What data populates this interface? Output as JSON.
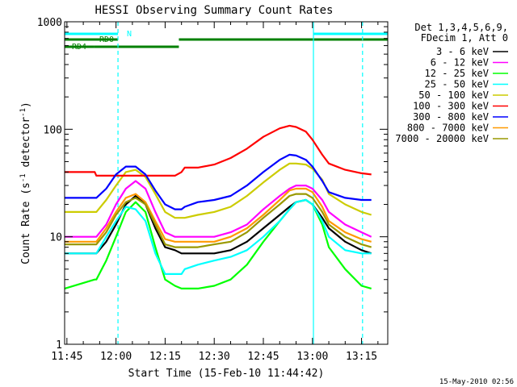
{
  "chart_data": {
    "type": "line",
    "title": "HESSI Observing Summary Count Rates",
    "xlabel": "Start Time (15-Feb-10 11:44:42)",
    "ylabel": "Count Rate (s⁻¹ detector⁻¹)",
    "ylabel_parts": [
      "Count Rate (s",
      "-1",
      " detector",
      "-1",
      ")"
    ],
    "xlim_min": [
      -0.7,
      98
    ],
    "xticks": [
      {
        "v": 0,
        "label": "11:45"
      },
      {
        "v": 15,
        "label": "12:00"
      },
      {
        "v": 30,
        "label": "12:15"
      },
      {
        "v": 45,
        "label": "12:30"
      },
      {
        "v": 60,
        "label": "12:45"
      },
      {
        "v": 75,
        "label": "13:00"
      },
      {
        "v": 90,
        "label": "13:15"
      }
    ],
    "ylim": [
      1,
      1000
    ],
    "yscale": "log",
    "yticks": [
      {
        "v": 1,
        "label": "1"
      },
      {
        "v": 10,
        "label": "10"
      },
      {
        "v": 100,
        "label": "100"
      },
      {
        "v": 1000,
        "label": "1000"
      }
    ],
    "legend": {
      "position": "right",
      "header": [
        "Det 1,3,4,5,6,9,",
        "FDecim 1, Att 0"
      ]
    },
    "x_minutes_after_11_45": [
      -0.7,
      8.5,
      9,
      12,
      15,
      18,
      21,
      24,
      27,
      30,
      33,
      35,
      36,
      40,
      45,
      50,
      55,
      60,
      65,
      68,
      70,
      73,
      75,
      78,
      80,
      85,
      90,
      93
    ],
    "series": [
      {
        "name": "3 - 6 keV",
        "color": "#000000",
        "values": [
          7,
          7,
          7,
          9,
          13,
          20,
          24,
          20,
          12,
          8,
          7.5,
          7,
          7,
          7,
          7,
          7.5,
          9,
          12,
          16,
          19,
          21,
          22,
          20,
          15,
          12,
          9,
          7.5,
          7
        ]
      },
      {
        "name": "6 - 12 keV",
        "color": "#ff00ff",
        "values": [
          10,
          10,
          10,
          13,
          20,
          28,
          33,
          28,
          17,
          11,
          10,
          10,
          10,
          10,
          10,
          11,
          13,
          18,
          24,
          28,
          30,
          30,
          28,
          22,
          17,
          13,
          11,
          10
        ]
      },
      {
        "name": "12 - 25 keV",
        "color": "#00ff00",
        "values": [
          3.3,
          4,
          4,
          6,
          10,
          17,
          21,
          17,
          8,
          4,
          3.5,
          3.3,
          3.3,
          3.3,
          3.5,
          4,
          5.5,
          9,
          14,
          18,
          21,
          22,
          20,
          13,
          8,
          5,
          3.5,
          3.3
        ]
      },
      {
        "name": "25 - 50 keV",
        "color": "#00ffff",
        "values": [
          7,
          7,
          7,
          10,
          14,
          19,
          18,
          14,
          7,
          4.5,
          4.5,
          4.5,
          5,
          5.5,
          6,
          6.5,
          7.5,
          10,
          14,
          18,
          21,
          22,
          20,
          14,
          10,
          7.5,
          7,
          7
        ]
      },
      {
        "name": "50 - 100 keV",
        "color": "#cccc00",
        "values": [
          17,
          17,
          17,
          22,
          30,
          40,
          42,
          36,
          25,
          17,
          15,
          15,
          15,
          16,
          17,
          19,
          24,
          32,
          42,
          48,
          48,
          47,
          43,
          34,
          25,
          20,
          17,
          16
        ]
      },
      {
        "name": "100 - 300 keV",
        "color": "#ff0000",
        "values": [
          40,
          40,
          37,
          37,
          37,
          37,
          37,
          37,
          37,
          37,
          37,
          40,
          44,
          44,
          47,
          54,
          66,
          85,
          102,
          108,
          105,
          95,
          80,
          58,
          48,
          42,
          39,
          38
        ]
      },
      {
        "name": "300 - 800 keV",
        "color": "#0000ff",
        "values": [
          23,
          23,
          23,
          28,
          38,
          45,
          45,
          38,
          27,
          20,
          18,
          18,
          19,
          21,
          22,
          24,
          30,
          40,
          52,
          58,
          57,
          52,
          45,
          33,
          26,
          23,
          22,
          22
        ]
      },
      {
        "name": "800 - 7000 keV",
        "color": "#ff9900",
        "values": [
          9,
          9,
          9,
          12,
          17,
          23,
          25,
          21,
          14,
          9.5,
          9,
          9,
          9,
          9,
          9,
          10,
          12,
          16,
          22,
          27,
          28,
          28,
          26,
          19,
          14,
          11,
          9.5,
          9
        ]
      },
      {
        "name": "7000 - 20000 keV",
        "color": "#999900",
        "values": [
          8.5,
          8.5,
          8.5,
          11,
          16,
          21,
          23,
          20,
          13,
          8.5,
          8,
          8,
          8,
          8,
          8.5,
          9,
          11,
          15,
          20,
          24,
          25,
          25,
          23,
          17,
          13,
          10,
          8.5,
          8
        ]
      }
    ],
    "flag_lines": [
      {
        "name": "N",
        "color": "#00ffff",
        "segments": [
          {
            "start": -0.7,
            "end": 15.6,
            "dashed_boundary": true
          },
          {
            "start": 75.3,
            "end": 98
          }
        ]
      },
      {
        "name": "RD0",
        "color": "#008000",
        "segments": [
          {
            "start": -0.7,
            "end": 15.6
          },
          {
            "start": 34.2,
            "end": 98
          }
        ]
      },
      {
        "name": "RD4",
        "color": "#008000",
        "segments": [
          {
            "start": -0.7,
            "end": 8.2
          },
          {
            "start": 8.2,
            "end": 34.2
          }
        ]
      }
    ],
    "marker_lines": [
      {
        "v": 15.6,
        "color": "#00ffff",
        "style": "dashed"
      },
      {
        "v": 75.3,
        "color": "#00ffff",
        "style": "solid"
      },
      {
        "v": 90.3,
        "color": "#00ffff",
        "style": "dashed"
      }
    ],
    "grid": false
  },
  "footer": {
    "timestamp": "15-May-2010 02:56"
  }
}
